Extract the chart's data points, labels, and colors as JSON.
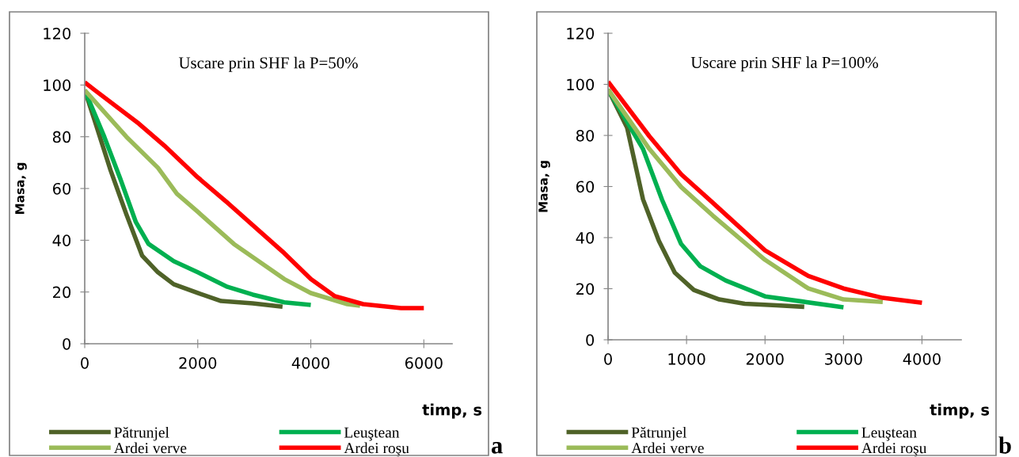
{
  "chart_data": [
    {
      "type": "line",
      "title": "Uscare prin SHF la P=50%",
      "xlabel": "timp, s",
      "ylabel": "Masa, g",
      "annotations": [
        "a"
      ],
      "xlim": [
        0,
        6500
      ],
      "xticks": [
        0,
        2000,
        4000,
        6000
      ],
      "ylim": [
        0,
        120
      ],
      "yticks": [
        0,
        20,
        40,
        60,
        80,
        100,
        120
      ],
      "grid": false,
      "legend": "bottom",
      "marker": "none",
      "line_style": "solid",
      "series": [
        {
          "name": "Pătrunjel",
          "color": "#4f6228",
          "x": [
            0,
            180,
            458,
            737,
            1017,
            1296,
            1575,
            2000,
            2413,
            2972,
            3500
          ],
          "values": [
            98,
            86,
            67,
            50,
            34,
            27.6,
            23,
            19.6,
            16.5,
            15.6,
            14.3
          ]
        },
        {
          "name": "Leuştean",
          "color": "#00b050",
          "x": [
            0,
            346,
            626,
            905,
            1128,
            1575,
            2000,
            2525,
            2972,
            3531,
            4000
          ],
          "values": [
            98,
            80,
            64,
            47,
            38.6,
            31.9,
            27.6,
            22,
            19,
            16,
            15
          ]
        },
        {
          "name": "Ardei verve",
          "color": "#9bbb59",
          "x": [
            0,
            737,
            1296,
            1631,
            2000,
            2637,
            3531,
            4000,
            4648,
            4872
          ],
          "values": [
            98,
            80,
            68,
            58,
            51,
            38.6,
            25,
            19.6,
            15.3,
            14.7
          ]
        },
        {
          "name": "Ardei roşu",
          "color": "#ff0000",
          "x": [
            0,
            179,
            961,
            1408,
            2000,
            2525,
            3531,
            4000,
            4425,
            4927,
            5598,
            6000
          ],
          "values": [
            101,
            98,
            85,
            76.6,
            64.3,
            54.5,
            35,
            25,
            18.4,
            15.3,
            13.8,
            13.8
          ]
        }
      ]
    },
    {
      "type": "line",
      "title": "Uscare prin SHF la P=100%",
      "xlabel": "timp, s",
      "ylabel": "Masa, g",
      "annotations": [
        "b"
      ],
      "xlim": [
        0,
        4500
      ],
      "xticks": [
        0,
        1000,
        2000,
        3000,
        4000
      ],
      "ylim": [
        0,
        120
      ],
      "yticks": [
        0,
        20,
        40,
        60,
        80,
        100,
        120
      ],
      "grid": false,
      "legend": "bottom",
      "marker": "none",
      "line_style": "solid",
      "series": [
        {
          "name": "Pătrunjel",
          "color": "#4f6228",
          "x": [
            0,
            243,
            445,
            648,
            850,
            1093,
            1417,
            1741,
            2146,
            2500
          ],
          "values": [
            98,
            83,
            55,
            38.7,
            26.3,
            19.5,
            15.8,
            14.1,
            13.5,
            12.9
          ]
        },
        {
          "name": "Leuştean",
          "color": "#00b050",
          "x": [
            0,
            445,
            688,
            931,
            1174,
            1498,
            2000,
            2470,
            3000
          ],
          "values": [
            98,
            74.7,
            54.8,
            37.5,
            28.8,
            23.2,
            17,
            15,
            12.7
          ]
        },
        {
          "name": "Ardei verve",
          "color": "#9bbb59",
          "x": [
            0,
            526,
            931,
            1336,
            2000,
            2551,
            3000,
            3500
          ],
          "values": [
            98,
            74.7,
            59.8,
            48.6,
            31.3,
            20.1,
            15.8,
            14.8
          ]
        },
        {
          "name": "Ardei roşu",
          "color": "#ff0000",
          "x": [
            0,
            526,
            931,
            1336,
            2000,
            2551,
            3000,
            3500,
            4000
          ],
          "values": [
            101,
            79.7,
            64.8,
            53.6,
            35,
            25,
            20.1,
            16.4,
            14.5
          ]
        }
      ]
    }
  ]
}
